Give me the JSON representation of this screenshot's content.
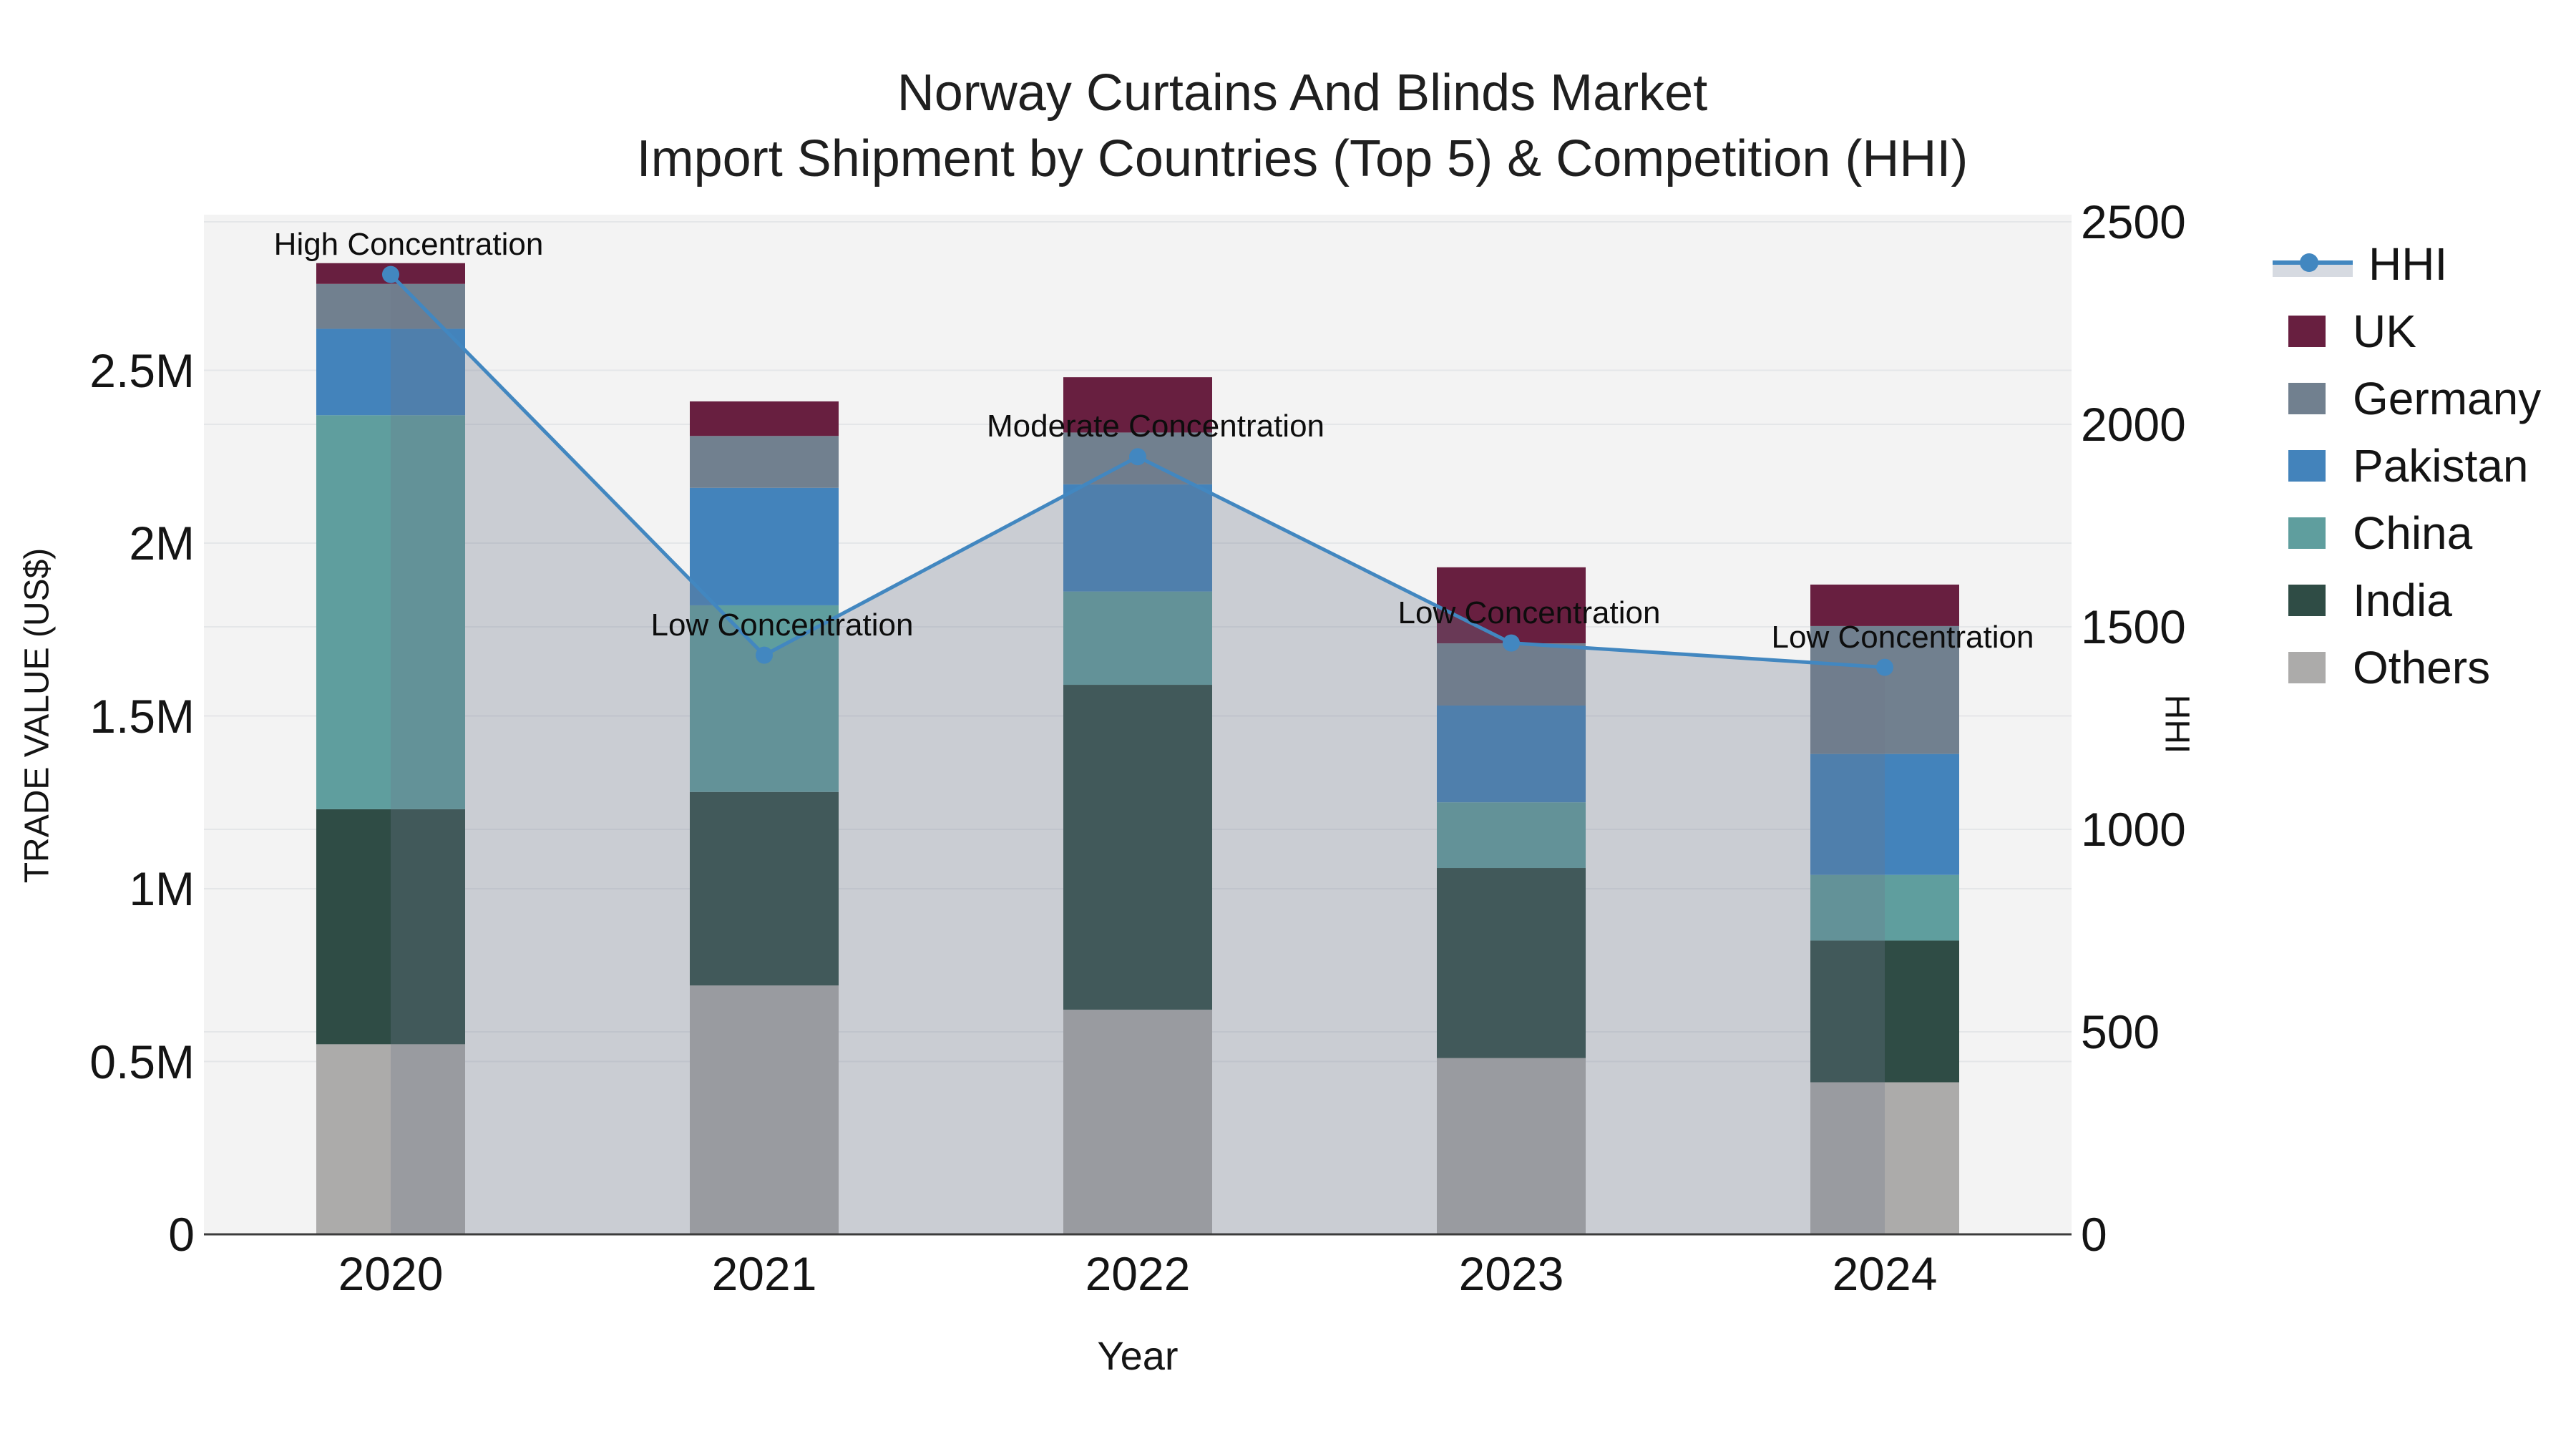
{
  "title": {
    "line1": "Norway Curtains And Blinds Market",
    "line2": "Import Shipment by Countries (Top 5) & Competition (HHI)"
  },
  "axes": {
    "x_title": "Year",
    "y_left_title": "TRADE VALUE (US$)",
    "y_right_title": "HHI",
    "y_left_tick_labels": [
      "0",
      "0.5M",
      "1M",
      "1.5M",
      "2M",
      "2.5M"
    ],
    "y_right_tick_labels": [
      "0",
      "500",
      "1000",
      "1500",
      "2000",
      "2500"
    ],
    "x_tick_labels": [
      "2020",
      "2021",
      "2022",
      "2023",
      "2024"
    ]
  },
  "legend": {
    "items": [
      {
        "label": "HHI",
        "type": "line",
        "color": "#4287c0"
      },
      {
        "label": "UK",
        "type": "box",
        "color": "#681f40"
      },
      {
        "label": "Germany",
        "type": "box",
        "color": "#71808f"
      },
      {
        "label": "Pakistan",
        "type": "box",
        "color": "#4383bb"
      },
      {
        "label": "China",
        "type": "box",
        "color": "#5f9e9e"
      },
      {
        "label": "India",
        "type": "box",
        "color": "#2f4c45"
      },
      {
        "label": "Others",
        "type": "box",
        "color": "#acabaa"
      }
    ]
  },
  "colors": {
    "plot_background": "#f3f3f3",
    "gridline": "#e4e6e8",
    "axis_line": "#3c3c3c",
    "hhi_line": "#4287c0",
    "hhi_fill": "rgba(108,118,138,0.30)",
    "text": "#141414"
  },
  "chart_data": {
    "type": "bar",
    "subtype": "stacked-bars-with-line-overlay",
    "title": "Norway Curtains And Blinds Market — Import Shipment by Countries (Top 5) & Competition (HHI)",
    "xlabel": "Year",
    "ylabel": "TRADE VALUE (US$)",
    "ylabel_right": "HHI",
    "categories": [
      "2020",
      "2021",
      "2022",
      "2023",
      "2024"
    ],
    "series": [
      {
        "name": "Others",
        "color": "#acabaa",
        "values": [
          550000,
          720000,
          650000,
          510000,
          440000
        ]
      },
      {
        "name": "India",
        "color": "#2f4c45",
        "values": [
          680000,
          560000,
          940000,
          550000,
          410000
        ]
      },
      {
        "name": "China",
        "color": "#5f9e9e",
        "values": [
          1140000,
          540000,
          270000,
          190000,
          190000
        ]
      },
      {
        "name": "Pakistan",
        "color": "#4383bb",
        "values": [
          250000,
          340000,
          310000,
          280000,
          350000
        ]
      },
      {
        "name": "Germany",
        "color": "#71808f",
        "values": [
          130000,
          150000,
          150000,
          180000,
          370000
        ]
      },
      {
        "name": "UK",
        "color": "#681f40",
        "values": [
          60000,
          100000,
          160000,
          220000,
          120000
        ]
      }
    ],
    "stack_totals": [
      2810000,
      2410000,
      2480000,
      1930000,
      1880000
    ],
    "line_series": {
      "name": "HHI",
      "axis": "right",
      "color": "#4287c0",
      "fill_under_line": true,
      "values": [
        2370,
        1430,
        1920,
        1460,
        1400
      ]
    },
    "annotations": [
      {
        "category": "2020",
        "text": "High Concentration"
      },
      {
        "category": "2021",
        "text": "Low Concentration"
      },
      {
        "category": "2022",
        "text": "Moderate Concentration"
      },
      {
        "category": "2023",
        "text": "Low Concentration"
      },
      {
        "category": "2024",
        "text": "Low Concentration"
      }
    ],
    "y_left_range": [
      0,
      2950000
    ],
    "y_left_tick_step": 500000,
    "y_right_range": [
      0,
      2518
    ],
    "y_right_tick_step": 500,
    "grid": true,
    "legend_position": "right"
  }
}
